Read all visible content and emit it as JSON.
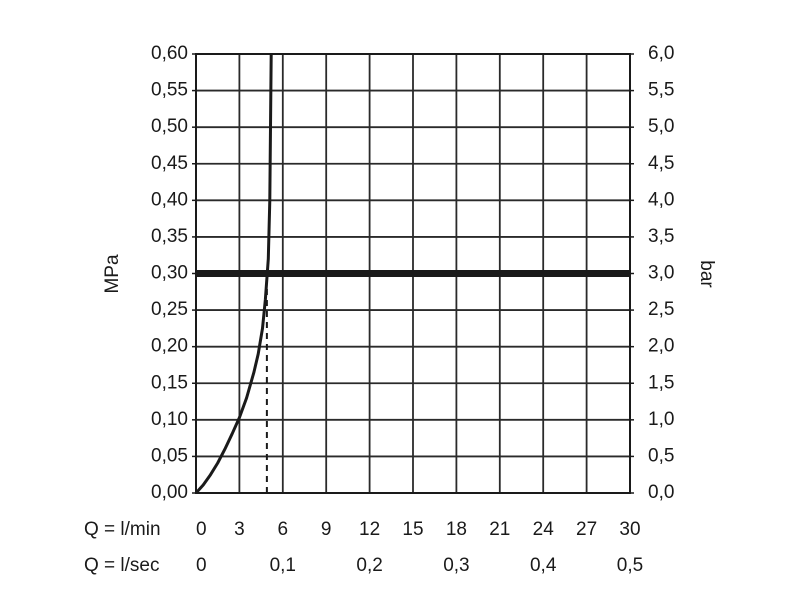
{
  "chart_data": {
    "type": "line",
    "title": "",
    "ylabel_left": "MPa",
    "ylabel_right": "bar",
    "x_rows": [
      {
        "label": "Q = l/min",
        "ticks": [
          "0",
          "3",
          "6",
          "9",
          "12",
          "15",
          "18",
          "21",
          "24",
          "27",
          "30"
        ],
        "values": [
          0,
          3,
          6,
          9,
          12,
          15,
          18,
          21,
          24,
          27,
          30
        ]
      },
      {
        "label": "Q = l/sec",
        "ticks": [
          "0",
          "0,1",
          "0,2",
          "0,3",
          "0,4",
          "0,5"
        ],
        "values": [
          0,
          0.1,
          0.2,
          0.3,
          0.4,
          0.5
        ]
      }
    ],
    "xlim": [
      0,
      30
    ],
    "ylim": [
      0,
      0.6
    ],
    "y_ticks_left": [
      "0,00",
      "0,05",
      "0,10",
      "0,15",
      "0,20",
      "0,25",
      "0,30",
      "0,35",
      "0,40",
      "0,45",
      "0,50",
      "0,55",
      "0,60"
    ],
    "y_ticks_right": [
      "0,0",
      "0,5",
      "1,0",
      "1,5",
      "2,0",
      "2,5",
      "3,0",
      "3,5",
      "4,0",
      "4,5",
      "5,0",
      "5,5",
      "6,0"
    ],
    "grid": true,
    "series": [
      {
        "type": "curve",
        "x": [
          0,
          0.5,
          1.0,
          1.5,
          2.0,
          2.5,
          3.0,
          3.5,
          4.0,
          4.3,
          4.6,
          4.8,
          5.0,
          5.1,
          5.15,
          5.2
        ],
        "y": [
          0,
          0.011,
          0.025,
          0.041,
          0.06,
          0.081,
          0.103,
          0.13,
          0.165,
          0.19,
          0.225,
          0.265,
          0.32,
          0.4,
          0.5,
          0.6
        ],
        "color": "#1a1a1a"
      },
      {
        "type": "hline",
        "y": 0.3,
        "color": "#1a1a1a"
      },
      {
        "type": "vline-dashed",
        "x": 4.9,
        "y": [
          0,
          0.3
        ],
        "color": "#1a1a1a"
      }
    ]
  }
}
